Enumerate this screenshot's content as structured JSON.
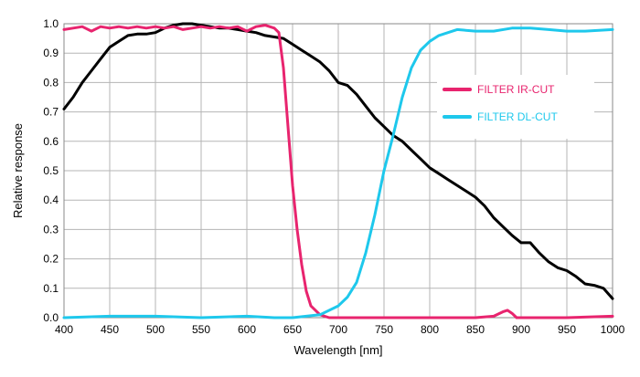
{
  "chart_data": {
    "type": "line",
    "title": "",
    "xlabel": "Wavelength [nm]",
    "ylabel": "Relative response",
    "xlim": [
      400,
      1000
    ],
    "ylim": [
      0,
      1.0
    ],
    "x_ticks": [
      "400",
      "450",
      "500",
      "550",
      "600",
      "650",
      "700",
      "750",
      "800",
      "850",
      "900",
      "950",
      "1000"
    ],
    "y_ticks": [
      "0.0",
      "0.1",
      "0.2",
      "0.3",
      "0.4",
      "0.5",
      "0.6",
      "0.7",
      "0.8",
      "0.9",
      "1.0"
    ],
    "grid": true,
    "legend_position": "right",
    "series": [
      {
        "name": "",
        "color": "#000000",
        "points": [
          [
            400,
            0.71
          ],
          [
            410,
            0.75
          ],
          [
            420,
            0.8
          ],
          [
            430,
            0.84
          ],
          [
            440,
            0.88
          ],
          [
            450,
            0.92
          ],
          [
            460,
            0.94
          ],
          [
            470,
            0.96
          ],
          [
            480,
            0.965
          ],
          [
            490,
            0.965
          ],
          [
            500,
            0.97
          ],
          [
            510,
            0.985
          ],
          [
            520,
            0.995
          ],
          [
            530,
            1.0
          ],
          [
            540,
            1.0
          ],
          [
            550,
            0.995
          ],
          [
            560,
            0.99
          ],
          [
            570,
            0.985
          ],
          [
            580,
            0.985
          ],
          [
            590,
            0.98
          ],
          [
            600,
            0.975
          ],
          [
            610,
            0.97
          ],
          [
            620,
            0.96
          ],
          [
            630,
            0.955
          ],
          [
            640,
            0.95
          ],
          [
            650,
            0.93
          ],
          [
            660,
            0.91
          ],
          [
            670,
            0.89
          ],
          [
            680,
            0.87
          ],
          [
            690,
            0.84
          ],
          [
            700,
            0.8
          ],
          [
            710,
            0.79
          ],
          [
            720,
            0.76
          ],
          [
            730,
            0.72
          ],
          [
            740,
            0.68
          ],
          [
            750,
            0.65
          ],
          [
            760,
            0.62
          ],
          [
            770,
            0.6
          ],
          [
            780,
            0.57
          ],
          [
            790,
            0.54
          ],
          [
            800,
            0.51
          ],
          [
            810,
            0.49
          ],
          [
            820,
            0.47
          ],
          [
            830,
            0.45
          ],
          [
            840,
            0.43
          ],
          [
            850,
            0.41
          ],
          [
            860,
            0.38
          ],
          [
            870,
            0.34
          ],
          [
            880,
            0.31
          ],
          [
            890,
            0.28
          ],
          [
            900,
            0.255
          ],
          [
            910,
            0.255
          ],
          [
            920,
            0.22
          ],
          [
            930,
            0.19
          ],
          [
            940,
            0.17
          ],
          [
            950,
            0.16
          ],
          [
            960,
            0.14
          ],
          [
            970,
            0.115
          ],
          [
            980,
            0.11
          ],
          [
            990,
            0.1
          ],
          [
            1000,
            0.065
          ]
        ]
      },
      {
        "name": "FILTER IR-CUT",
        "color": "#e8246e",
        "points": [
          [
            400,
            0.98
          ],
          [
            410,
            0.985
          ],
          [
            420,
            0.99
          ],
          [
            430,
            0.975
          ],
          [
            440,
            0.99
          ],
          [
            450,
            0.985
          ],
          [
            460,
            0.99
          ],
          [
            470,
            0.985
          ],
          [
            480,
            0.99
          ],
          [
            490,
            0.985
          ],
          [
            500,
            0.99
          ],
          [
            510,
            0.985
          ],
          [
            520,
            0.99
          ],
          [
            530,
            0.98
          ],
          [
            540,
            0.985
          ],
          [
            550,
            0.99
          ],
          [
            560,
            0.985
          ],
          [
            570,
            0.99
          ],
          [
            580,
            0.985
          ],
          [
            590,
            0.99
          ],
          [
            600,
            0.975
          ],
          [
            610,
            0.99
          ],
          [
            620,
            0.995
          ],
          [
            630,
            0.985
          ],
          [
            635,
            0.97
          ],
          [
            640,
            0.85
          ],
          [
            645,
            0.65
          ],
          [
            650,
            0.45
          ],
          [
            655,
            0.3
          ],
          [
            660,
            0.18
          ],
          [
            665,
            0.09
          ],
          [
            670,
            0.04
          ],
          [
            680,
            0.01
          ],
          [
            690,
            0.0
          ],
          [
            700,
            0.0
          ],
          [
            750,
            0.0
          ],
          [
            800,
            0.0
          ],
          [
            850,
            0.0
          ],
          [
            870,
            0.005
          ],
          [
            880,
            0.02
          ],
          [
            885,
            0.025
          ],
          [
            890,
            0.015
          ],
          [
            895,
            0.0
          ],
          [
            950,
            0.0
          ],
          [
            1000,
            0.005
          ]
        ]
      },
      {
        "name": "FILTER DL-CUT",
        "color": "#1ec8ec",
        "points": [
          [
            400,
            0.0
          ],
          [
            450,
            0.005
          ],
          [
            500,
            0.005
          ],
          [
            550,
            0.0
          ],
          [
            600,
            0.005
          ],
          [
            630,
            0.0
          ],
          [
            650,
            0.0
          ],
          [
            680,
            0.01
          ],
          [
            700,
            0.04
          ],
          [
            710,
            0.07
          ],
          [
            720,
            0.12
          ],
          [
            730,
            0.22
          ],
          [
            740,
            0.35
          ],
          [
            750,
            0.5
          ],
          [
            760,
            0.62
          ],
          [
            770,
            0.75
          ],
          [
            780,
            0.85
          ],
          [
            790,
            0.91
          ],
          [
            800,
            0.94
          ],
          [
            810,
            0.96
          ],
          [
            820,
            0.97
          ],
          [
            830,
            0.98
          ],
          [
            850,
            0.975
          ],
          [
            870,
            0.975
          ],
          [
            890,
            0.985
          ],
          [
            910,
            0.985
          ],
          [
            930,
            0.98
          ],
          [
            950,
            0.975
          ],
          [
            970,
            0.975
          ],
          [
            1000,
            0.98
          ]
        ]
      }
    ]
  }
}
